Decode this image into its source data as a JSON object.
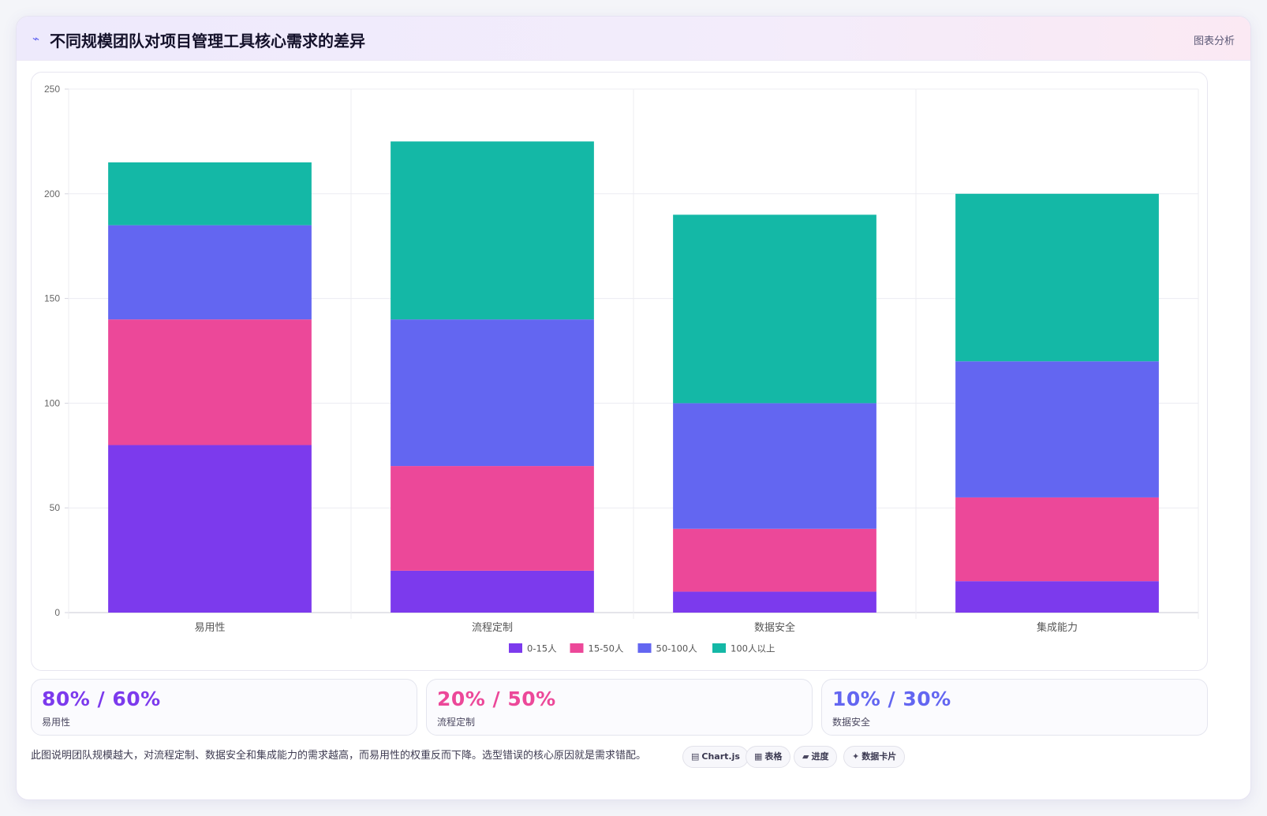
{
  "header": {
    "icon": "chart-line-icon",
    "title": "不同规模团队对项目管理工具核心需求的差异",
    "tag": "图表分析"
  },
  "chart_data": {
    "type": "bar",
    "stacked": true,
    "categories": [
      "易用性",
      "流程定制",
      "数据安全",
      "集成能力"
    ],
    "series": [
      {
        "name": "0-15人",
        "color": "#7c3aed",
        "values": [
          80,
          20,
          10,
          15
        ]
      },
      {
        "name": "15-50人",
        "color": "#ec4899",
        "values": [
          60,
          50,
          30,
          40
        ]
      },
      {
        "name": "50-100人",
        "color": "#6366f1",
        "values": [
          45,
          70,
          60,
          65
        ]
      },
      {
        "name": "100人以上",
        "color": "#14b8a6",
        "values": [
          30,
          85,
          90,
          80
        ]
      }
    ],
    "ylim": [
      0,
      250
    ],
    "yticks": [
      0,
      50,
      100,
      150,
      200,
      250
    ],
    "grid": true,
    "legend": "bottom"
  },
  "stats": [
    {
      "value": "80% / 60%",
      "label": "易用性",
      "color": "#7c3aed"
    },
    {
      "value": "20% / 50%",
      "label": "流程定制",
      "color": "#ec4899"
    },
    {
      "value": "10% / 30%",
      "label": "数据安全",
      "color": "#6366f1"
    }
  ],
  "note": "此图说明团队规模越大，对流程定制、数据安全和集成能力的需求越高，而易用性的权重反而下降。选型错误的核心原因就是需求错配。",
  "chips": [
    {
      "icon": "▤",
      "label": "Chart.js"
    },
    {
      "icon": "▦",
      "label": "表格"
    },
    {
      "icon": "▰",
      "label": "进度"
    },
    {
      "icon": "✦",
      "label": "数据卡片"
    }
  ]
}
